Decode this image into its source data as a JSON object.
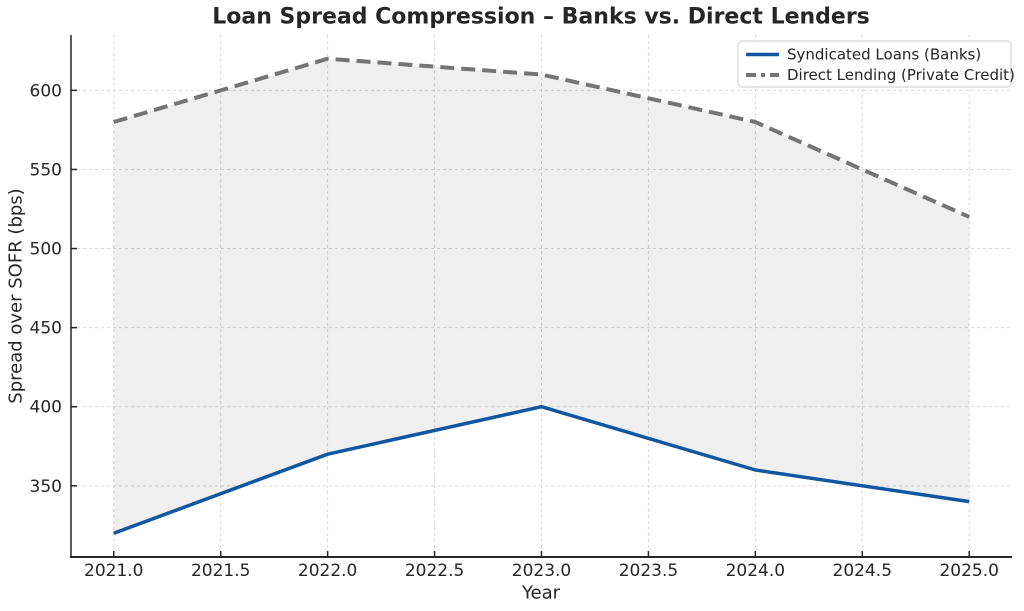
{
  "figure": {
    "title": "Loan Spread Compression – Banks vs. Direct Lenders"
  },
  "chart_data": {
    "type": "line",
    "title": "Loan Spread Compression – Banks vs. Direct Lenders",
    "xlabel": "Year",
    "ylabel": "Spread over SOFR (bps)",
    "x": [
      2021,
      2022,
      2023,
      2024,
      2025
    ],
    "series": [
      {
        "name": "Syndicated Loans (Banks)",
        "values": [
          320,
          370,
          400,
          360,
          340
        ],
        "color": "#1156a0",
        "style": "solid",
        "width": 3.5
      },
      {
        "name": "Direct Lending (Private Credit)",
        "values": [
          580,
          620,
          610,
          580,
          520
        ],
        "color": "#747474",
        "style": "dashed",
        "width": 4
      }
    ],
    "fill_between": {
      "enabled": true,
      "color": "rgba(128,134,142,0.13)"
    },
    "xlim": [
      2020.8,
      2025.2
    ],
    "ylim": [
      305,
      635
    ],
    "xticks": [
      2021.0,
      2021.5,
      2022.0,
      2022.5,
      2023.0,
      2023.5,
      2024.0,
      2024.5,
      2025.0
    ],
    "xtick_labels": [
      "2021.0",
      "2021.5",
      "2022.0",
      "2022.5",
      "2023.0",
      "2023.5",
      "2024.0",
      "2024.5",
      "2025.0"
    ],
    "yticks": [
      350,
      400,
      450,
      500,
      550,
      600
    ],
    "ytick_labels": [
      "350",
      "400",
      "450",
      "500",
      "550",
      "600"
    ],
    "grid": true,
    "grid_style": "dashed",
    "legend_position": "upper right",
    "tick_direction": "in",
    "text_color": "#262626"
  }
}
